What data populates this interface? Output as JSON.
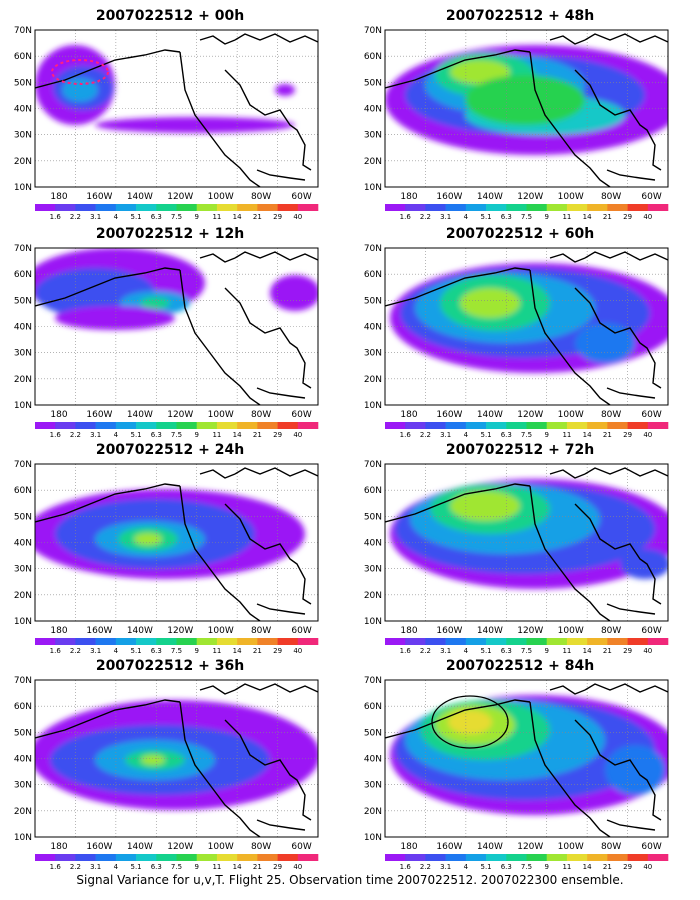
{
  "caption": "Signal Variance for u,v,T. Flight 25. Observation time 2007022512. 2007022300 ensemble.",
  "lat_labels": [
    "70N",
    "60N",
    "50N",
    "40N",
    "30N",
    "20N",
    "10N"
  ],
  "lon_labels": [
    "180",
    "160W",
    "140W",
    "120W",
    "100W",
    "80W",
    "60W"
  ],
  "colorbar": {
    "labels": [
      "1.6",
      "2.2",
      "3.1",
      "4",
      "5.1",
      "6.3",
      "7.5",
      "9",
      "11",
      "14",
      "21",
      "29",
      "40"
    ],
    "colors": [
      "#9b19f5",
      "#6a3cf0",
      "#3c50f0",
      "#1e78f0",
      "#14a0e6",
      "#14c8c8",
      "#14d28c",
      "#28d250",
      "#a0e632",
      "#e6dc32",
      "#f0b428",
      "#f08228",
      "#f03c28",
      "#f0287a"
    ]
  },
  "panels": [
    {
      "title": "2007022512 + 00h"
    },
    {
      "title": "2007022512 + 48h"
    },
    {
      "title": "2007022512 + 12h"
    },
    {
      "title": "2007022512 + 60h"
    },
    {
      "title": "2007022512 + 24h"
    },
    {
      "title": "2007022512 + 72h"
    },
    {
      "title": "2007022512 + 36h"
    },
    {
      "title": "2007022512 + 84h"
    }
  ]
}
